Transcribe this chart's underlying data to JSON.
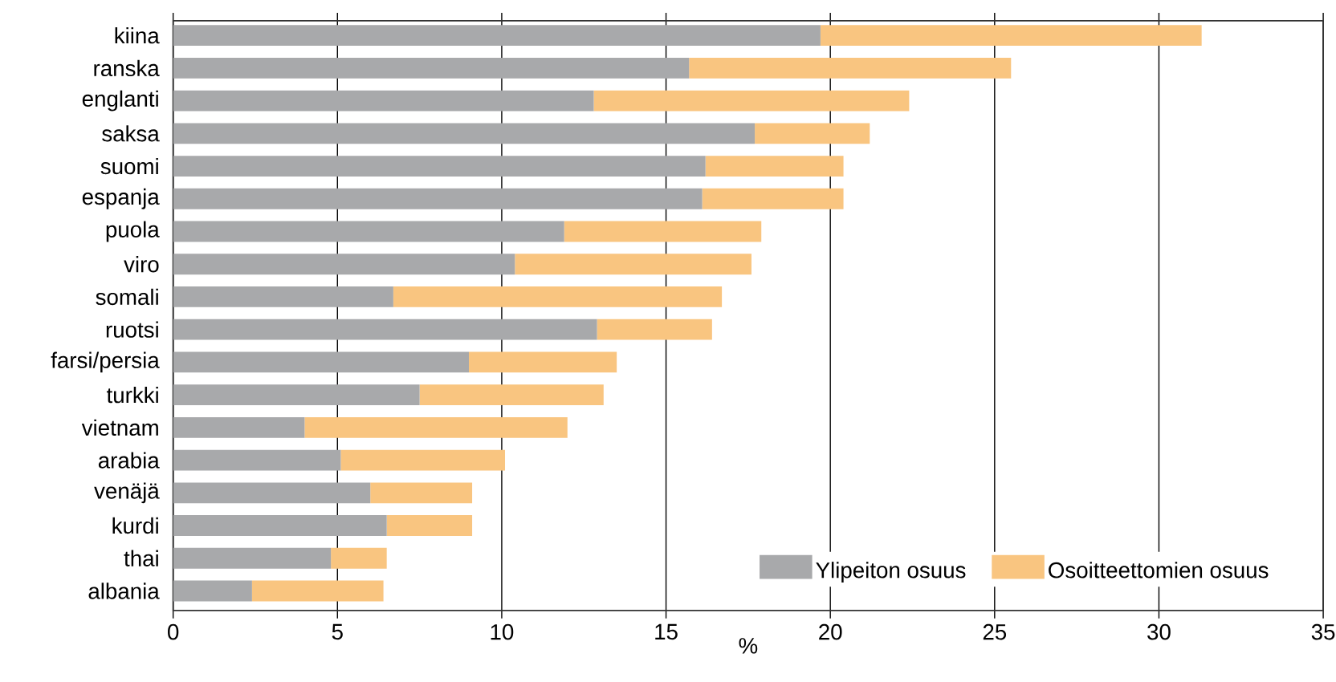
{
  "chart_data": {
    "type": "bar",
    "orientation": "horizontal",
    "stacked": true,
    "xlabel": "%",
    "categories": [
      "kiina",
      "ranska",
      "englanti",
      "saksa",
      "suomi",
      "espanja",
      "puola",
      "viro",
      "somali",
      "ruotsi",
      "farsi/persia",
      "turkki",
      "vietnam",
      "arabia",
      "venäjä",
      "kurdi",
      "thai",
      "albania"
    ],
    "series": [
      {
        "name": "Ylipeiton osuus",
        "color": "#a8a9ab",
        "values": [
          19.7,
          15.7,
          12.8,
          17.7,
          16.2,
          16.1,
          11.9,
          10.4,
          6.7,
          12.9,
          9.0,
          7.5,
          4.0,
          5.1,
          6.0,
          6.5,
          4.8,
          2.4
        ]
      },
      {
        "name": "Osoitteettomien osuus",
        "color": "#f9c580",
        "values": [
          11.6,
          9.8,
          9.6,
          3.5,
          4.2,
          4.3,
          6.0,
          7.2,
          10.0,
          3.5,
          4.5,
          5.6,
          8.0,
          5.0,
          3.1,
          2.6,
          1.7,
          4.0
        ]
      }
    ],
    "xlim": [
      0,
      35
    ],
    "xticks": [
      0,
      5,
      10,
      15,
      20,
      25,
      30,
      35
    ],
    "grid": "x",
    "legend": "bottom right"
  }
}
